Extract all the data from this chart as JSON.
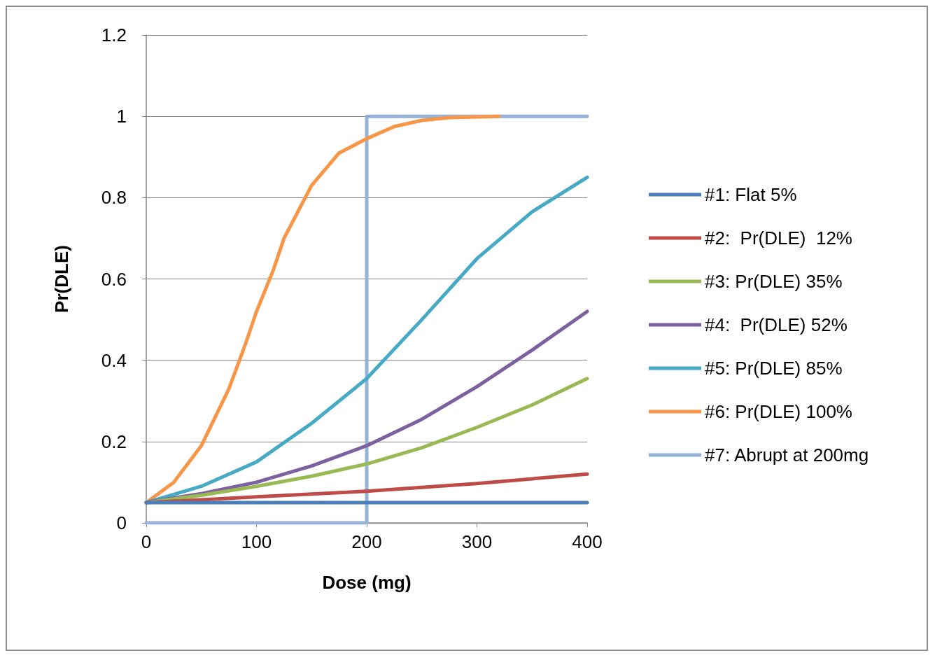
{
  "chart_data": {
    "type": "line",
    "xlabel": "Dose (mg)",
    "ylabel": "Pr(DLE)",
    "xlim": [
      0,
      400
    ],
    "xticks": [
      0,
      100,
      200,
      300,
      400
    ],
    "ylim": [
      0,
      1.2
    ],
    "yticks": [
      0,
      0.2,
      0.4,
      0.6,
      0.8,
      1,
      1.2
    ],
    "grid": "y",
    "legend": "right",
    "marker": "none",
    "series": [
      {
        "name": "#1: Flat 5%",
        "color": "#4a7ebb",
        "x": [
          0,
          400
        ],
        "values": [
          0.05,
          0.05
        ]
      },
      {
        "name": "#2:  Pr(DLE)  12%",
        "color": "#be4b48",
        "x": [
          0,
          100,
          200,
          300,
          400
        ],
        "values": [
          0.05,
          0.064,
          0.078,
          0.097,
          0.12
        ]
      },
      {
        "name": "#3: Pr(DLE) 35%",
        "color": "#98b954",
        "x": [
          0,
          50,
          100,
          150,
          200,
          250,
          300,
          350,
          400
        ],
        "values": [
          0.05,
          0.068,
          0.09,
          0.115,
          0.145,
          0.185,
          0.235,
          0.29,
          0.355
        ]
      },
      {
        "name": "#4:  Pr(DLE) 52%",
        "color": "#7d60a0",
        "x": [
          0,
          50,
          100,
          150,
          200,
          250,
          300,
          350,
          400
        ],
        "values": [
          0.05,
          0.072,
          0.1,
          0.14,
          0.19,
          0.255,
          0.335,
          0.425,
          0.52
        ]
      },
      {
        "name": "#5: Pr(DLE) 85%",
        "color": "#46aac5",
        "x": [
          0,
          50,
          100,
          150,
          200,
          250,
          300,
          350,
          400
        ],
        "values": [
          0.05,
          0.09,
          0.15,
          0.245,
          0.355,
          0.5,
          0.65,
          0.765,
          0.85
        ]
      },
      {
        "name": "#6: Pr(DLE) 100%",
        "color": "#f79646",
        "x": [
          0,
          25,
          50,
          75,
          90,
          100,
          115,
          125,
          150,
          175,
          200,
          225,
          250,
          275,
          320
        ],
        "values": [
          0.05,
          0.1,
          0.19,
          0.33,
          0.44,
          0.52,
          0.62,
          0.7,
          0.83,
          0.91,
          0.945,
          0.975,
          0.99,
          0.997,
          1
        ]
      },
      {
        "name": "#7: Abrupt at 200mg",
        "color": "#95b3d7",
        "x": [
          0,
          200,
          200,
          400
        ],
        "values": [
          0,
          0,
          1,
          1
        ]
      }
    ]
  }
}
